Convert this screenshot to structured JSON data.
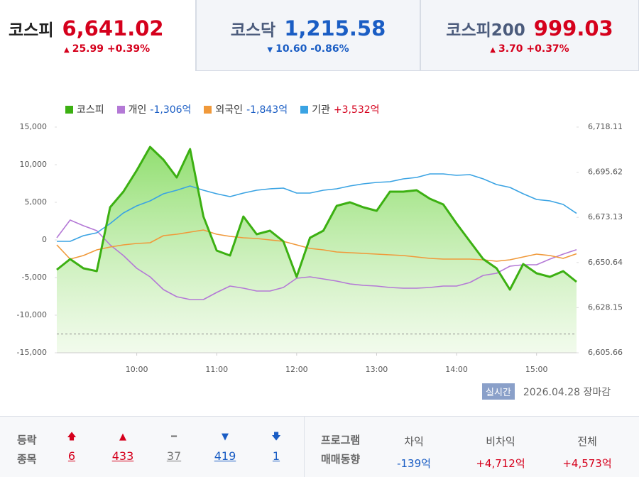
{
  "index_tabs": [
    {
      "name": "코스피",
      "value": "6,641.02",
      "change": "25.99 +0.39%",
      "direction": "up",
      "active": true
    },
    {
      "name": "코스닥",
      "value": "1,215.58",
      "change": "10.60 -0.86%",
      "direction": "down",
      "active": false
    },
    {
      "name": "코스피200",
      "value": "999.03",
      "change": "3.70 +0.37%",
      "direction": "up",
      "active": false
    }
  ],
  "chart_data": {
    "type": "line",
    "x": [
      540,
      550,
      560,
      570,
      580,
      590,
      600,
      610,
      620,
      630,
      640,
      650,
      660,
      670,
      680,
      690,
      700,
      710,
      720,
      730,
      740,
      750,
      760,
      770,
      780,
      790,
      800,
      810,
      820,
      830,
      840,
      850,
      860,
      870,
      880,
      890,
      900,
      910,
      920,
      930
    ],
    "xlim": [
      540,
      930
    ],
    "xticks": [
      {
        "value": 600,
        "label": "10:00"
      },
      {
        "value": 660,
        "label": "11:00"
      },
      {
        "value": 720,
        "label": "12:00"
      },
      {
        "value": 780,
        "label": "13:00"
      },
      {
        "value": 840,
        "label": "14:00"
      },
      {
        "value": 900,
        "label": "15:00"
      }
    ],
    "ylim": [
      -15000,
      15000
    ],
    "yticks": [
      {
        "value": 15000,
        "label": "15,000"
      },
      {
        "value": 10000,
        "label": "10,000"
      },
      {
        "value": 5000,
        "label": "5,000"
      },
      0,
      {
        "value": -5000,
        "label": "-5,000"
      },
      {
        "value": -10000,
        "label": "-10,000"
      },
      {
        "value": -15000,
        "label": "-15,000"
      }
    ],
    "y2lim": [
      6605.66,
      6718.11
    ],
    "y2ticks": [
      {
        "value": 6718.11,
        "label": "6,718.11"
      },
      {
        "value": 6695.62,
        "label": "6,695.62"
      },
      {
        "value": 6673.13,
        "label": "6,673.13"
      },
      {
        "value": 6650.64,
        "label": "6,650.64"
      },
      {
        "value": 6628.15,
        "label": "6,628.15"
      },
      {
        "value": 6605.66,
        "label": "6,605.66"
      }
    ],
    "reference_line": 6615.03,
    "series": [
      {
        "name": "코스피",
        "color": "#3cb012",
        "axis": "y2",
        "fill": true,
        "values": [
          6647.03,
          6652.34,
          6647.74,
          6646.33,
          6678.15,
          6685.93,
          6696.54,
          6708.21,
          6701.84,
          6693.0,
          6707.15,
          6673.56,
          6656.58,
          6654.11,
          6673.56,
          6664.71,
          6666.48,
          6661.18,
          6643.5,
          6662.95,
          6666.48,
          6678.86,
          6680.63,
          6678.15,
          6676.38,
          6685.93,
          6685.93,
          6686.64,
          6682.4,
          6679.57,
          6670.02,
          6661.18,
          6652.34,
          6647.74,
          6637.13,
          6649.86,
          6645.27,
          6643.5,
          6646.33,
          6641.02
        ]
      },
      {
        "name": "개인",
        "color": "#b479d6",
        "total_label": "-1,306억",
        "values": [
          283,
          2642,
          1887,
          1226,
          -660,
          -2075,
          -3774,
          -4906,
          -6604,
          -7547,
          -7925,
          -7925,
          -6981,
          -6132,
          -6415,
          -6792,
          -6792,
          -6321,
          -5094,
          -4906,
          -5189,
          -5472,
          -5849,
          -6038,
          -6132,
          -6321,
          -6415,
          -6415,
          -6321,
          -6132,
          -6132,
          -5660,
          -4717,
          -4434,
          -3491,
          -3302,
          -3302,
          -2547,
          -1887,
          -1306
        ]
      },
      {
        "name": "외국인",
        "color": "#f0993a",
        "total_label": "-1,843억",
        "values": [
          -660,
          -2547,
          -2075,
          -1321,
          -943,
          -660,
          -472,
          -377,
          566,
          755,
          1038,
          1321,
          755,
          472,
          283,
          189,
          0,
          -189,
          -660,
          -1132,
          -1321,
          -1604,
          -1698,
          -1792,
          -1887,
          -1981,
          -2075,
          -2264,
          -2453,
          -2547,
          -2547,
          -2547,
          -2642,
          -2830,
          -2642,
          -2264,
          -1887,
          -2075,
          -2453,
          -1843
        ]
      },
      {
        "name": "기관",
        "color": "#3aa3e3",
        "total_label": "+3,532억",
        "values": [
          -189,
          -189,
          566,
          943,
          2170,
          3585,
          4528,
          5189,
          6132,
          6604,
          7170,
          6604,
          6132,
          5755,
          6226,
          6604,
          6792,
          6887,
          6226,
          6226,
          6604,
          6792,
          7170,
          7453,
          7642,
          7736,
          8113,
          8302,
          8774,
          8774,
          8585,
          8679,
          8113,
          7359,
          6981,
          6132,
          5377,
          5189,
          4717,
          3532
        ]
      }
    ]
  },
  "status": {
    "badge": "실시간",
    "date": "2026.04.28",
    "state": "장마감"
  },
  "breadth": {
    "title": [
      "등락",
      "종목"
    ],
    "items": [
      {
        "count": "6",
        "direction": "up-limit"
      },
      {
        "count": "433",
        "direction": "up"
      },
      {
        "count": "37",
        "direction": "flat"
      },
      {
        "count": "419",
        "direction": "down"
      },
      {
        "count": "1",
        "direction": "down-limit"
      }
    ]
  },
  "program": {
    "title": [
      "프로그램",
      "매매동향"
    ],
    "columns": [
      {
        "label": "차익",
        "value": "-139억"
      },
      {
        "label": "비차익",
        "value": "+4,712억"
      },
      {
        "label": "전체",
        "value": "+4,573억"
      }
    ]
  }
}
